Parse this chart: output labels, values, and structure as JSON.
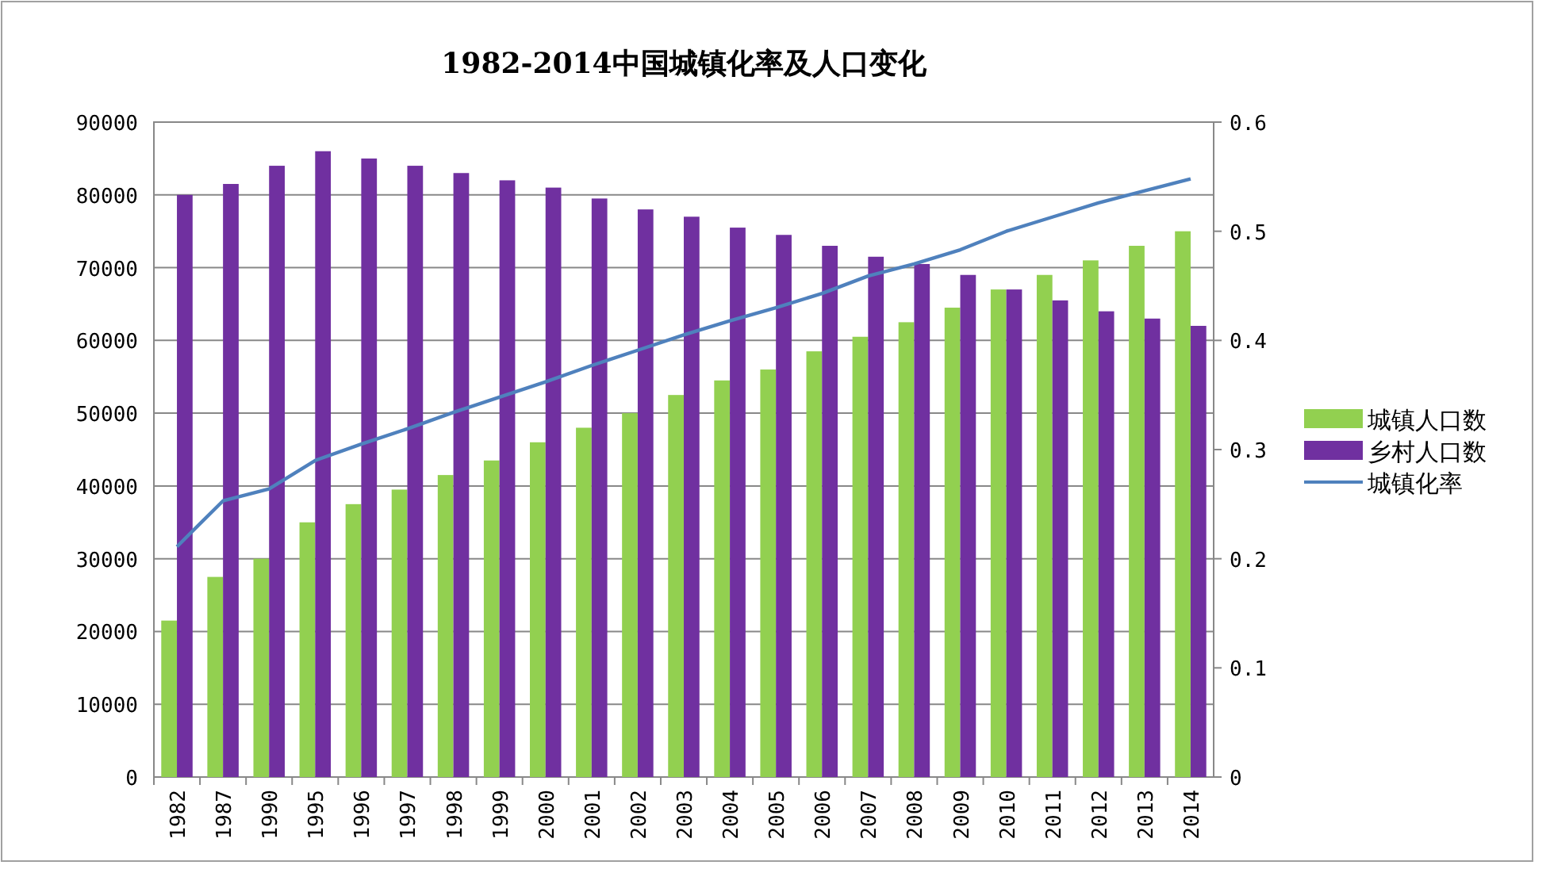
{
  "chart_data": {
    "type": "bar",
    "title": "1982-2014中国城镇化率及人口变化",
    "categories": [
      "1982",
      "1987",
      "1990",
      "1995",
      "1996",
      "1997",
      "1998",
      "1999",
      "2000",
      "2001",
      "2002",
      "2003",
      "2004",
      "2005",
      "2006",
      "2007",
      "2008",
      "2009",
      "2010",
      "2011",
      "2012",
      "2013",
      "2014"
    ],
    "series": [
      {
        "name": "城镇人口数",
        "color": "#92d050",
        "values": [
          21500,
          27500,
          30000,
          35000,
          37500,
          39500,
          41500,
          43500,
          46000,
          48000,
          50000,
          52500,
          54500,
          56000,
          58500,
          60500,
          62500,
          64500,
          67000,
          69000,
          71000,
          73000,
          75000
        ]
      },
      {
        "name": "乡村人口数",
        "color": "#7030a0",
        "values": [
          80000,
          81500,
          84000,
          86000,
          85000,
          84000,
          83000,
          82000,
          81000,
          79500,
          78000,
          77000,
          75500,
          74500,
          73000,
          71500,
          70500,
          69000,
          67000,
          65500,
          64000,
          63000,
          62000
        ]
      },
      {
        "name": "城镇化率",
        "type": "line",
        "axis": "y2",
        "color": "#4f81bd",
        "values": [
          0.211,
          0.253,
          0.264,
          0.29,
          0.305,
          0.319,
          0.334,
          0.348,
          0.362,
          0.377,
          0.391,
          0.405,
          0.418,
          0.43,
          0.443,
          0.459,
          0.47,
          0.483,
          0.5,
          0.513,
          0.526,
          0.537,
          0.548
        ]
      }
    ],
    "ylim": [
      0,
      90000
    ],
    "yticks": [
      0,
      10000,
      20000,
      30000,
      40000,
      50000,
      60000,
      70000,
      80000,
      90000
    ],
    "y2lim": [
      0,
      0.6
    ],
    "y2ticks": [
      0,
      0.1,
      0.2,
      0.3,
      0.4,
      0.5,
      0.6
    ],
    "grid": "y",
    "legend": "right"
  }
}
